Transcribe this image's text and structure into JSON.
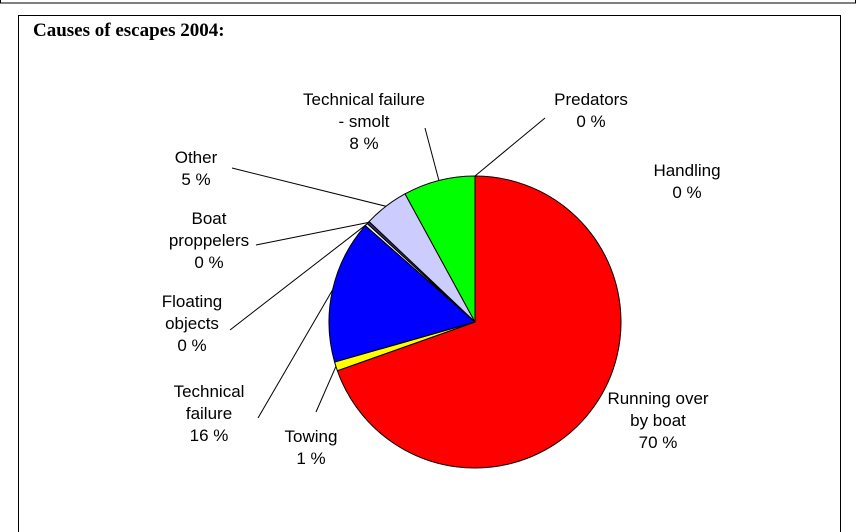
{
  "chart_data": {
    "type": "pie",
    "title": "Causes of escapes 2004:",
    "categories": [
      "Running over by boat",
      "Towing",
      "Technical failure",
      "Floating objects",
      "Boat proppelers",
      "Other",
      "Technical failure - smolt",
      "Predators",
      "Handling"
    ],
    "values": [
      70,
      1,
      16,
      0.3,
      0.3,
      5,
      8,
      0,
      0
    ],
    "value_labels": [
      "70 %",
      "1 %",
      "16 %",
      "0 %",
      "0 %",
      "5 %",
      "8 %",
      "0 %",
      "0 %"
    ],
    "colors": [
      "#ff0000",
      "#ffff00",
      "#0000ff",
      "#ffffff",
      "#333366",
      "#ccccff",
      "#00ff00",
      "#993366",
      "#ff99cc"
    ]
  }
}
